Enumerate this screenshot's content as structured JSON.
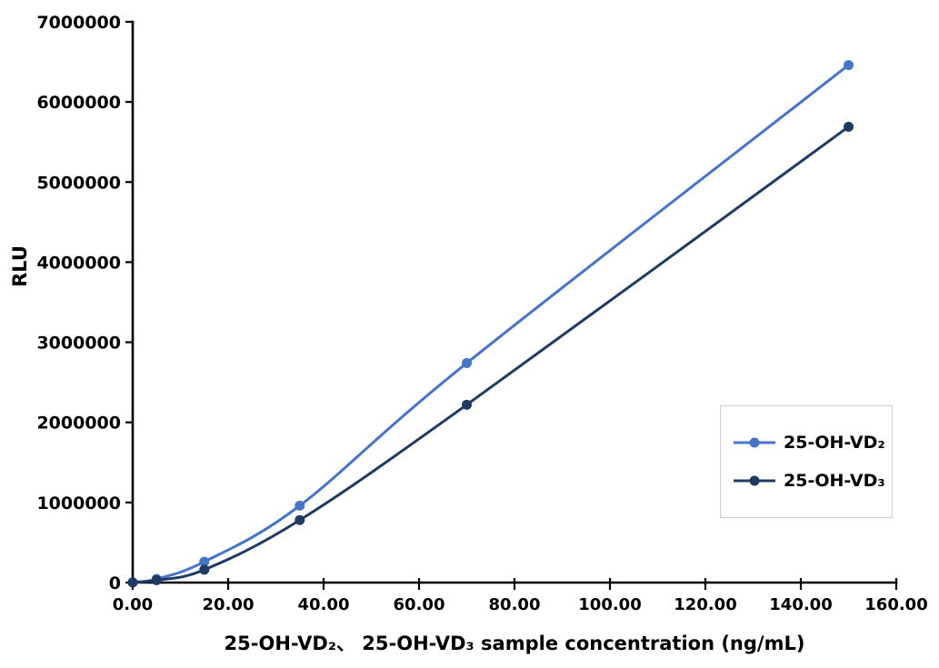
{
  "figure": {
    "background_color": "#ffffff",
    "text_color": "#000000"
  },
  "chart_data": {
    "type": "line",
    "title": "",
    "xlabel": "25-OH-VD₂、 25-OH-VD₃ sample concentration (ng/mL)",
    "ylabel": "RLU",
    "x": [
      0.0,
      5.0,
      15.0,
      35.0,
      70.0,
      150.0
    ],
    "series": [
      {
        "name": "25-OH-VD₂",
        "color": "#4574cb",
        "values": [
          2000,
          45000,
          260000,
          960000,
          2740000,
          6460000
        ]
      },
      {
        "name": "25-OH-VD₃",
        "color": "#1f3a63",
        "values": [
          1000,
          30000,
          160000,
          780000,
          2220000,
          5690000
        ]
      }
    ],
    "xlim": [
      0,
      160
    ],
    "ylim": [
      0,
      7000000
    ],
    "x_ticks": [
      "0.00",
      "20.00",
      "40.00",
      "60.00",
      "80.00",
      "100.00",
      "120.00",
      "140.00",
      "160.00"
    ],
    "x_tick_values": [
      0,
      20,
      40,
      60,
      80,
      100,
      120,
      140,
      160
    ],
    "y_ticks": [
      "0",
      "1000000",
      "2000000",
      "3000000",
      "4000000",
      "5000000",
      "6000000",
      "7000000"
    ],
    "y_tick_values": [
      0,
      1000000,
      2000000,
      3000000,
      4000000,
      5000000,
      6000000,
      7000000
    ],
    "grid": false,
    "smooth": true,
    "marker": "circle",
    "legend_position": "inside-right",
    "legend_border_color": "#cfcfcf",
    "axis_color": "#000000"
  }
}
